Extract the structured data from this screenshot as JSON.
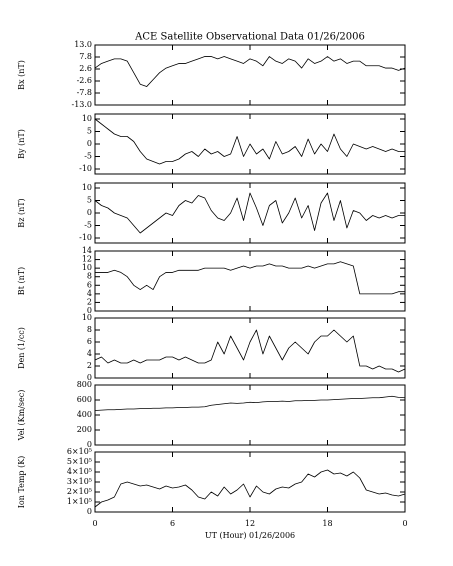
{
  "chart_data": [
    {
      "type": "line",
      "title": "ACE Satellite Observational Data  01/26/2006",
      "ylabel": "Bx (nT)",
      "color": "#000000",
      "xlim": [
        0,
        24
      ],
      "xticks": [
        0,
        6,
        12,
        18,
        24
      ],
      "ylim": [
        -13,
        13
      ],
      "yticks": [
        {
          "value": 13,
          "label": "13.0"
        },
        {
          "value": 7.8,
          "label": "7.8"
        },
        {
          "value": 2.6,
          "label": "2.6"
        },
        {
          "value": -2.6,
          "label": "-2.6"
        },
        {
          "value": -7.8,
          "label": "-7.8"
        },
        {
          "value": -13,
          "label": "-13.0"
        }
      ],
      "x": [
        0,
        0.5,
        1,
        1.5,
        2,
        2.5,
        3,
        3.5,
        4,
        4.5,
        5,
        5.5,
        6,
        6.5,
        7,
        7.5,
        8,
        8.5,
        9,
        9.5,
        10,
        10.5,
        11,
        11.5,
        12,
        12.5,
        13,
        13.5,
        14,
        14.5,
        15,
        15.5,
        16,
        16.5,
        17,
        17.5,
        18,
        18.5,
        19,
        19.5,
        20,
        20.5,
        21,
        21.5,
        22,
        22.5,
        23,
        23.5,
        24
      ],
      "values": [
        3,
        5,
        6,
        7,
        7,
        6,
        1,
        -4,
        -5,
        -2,
        1,
        3,
        4,
        5,
        5,
        6,
        7,
        8,
        8,
        7,
        8,
        7,
        6,
        5,
        7,
        6,
        4,
        8,
        6,
        5,
        7,
        6,
        3,
        7,
        5,
        6,
        8,
        6,
        7,
        5,
        6,
        6,
        4,
        4,
        4,
        3,
        3,
        2,
        3
      ]
    },
    {
      "type": "line",
      "ylabel": "By (nT)",
      "color": "#000000",
      "xlim": [
        0,
        24
      ],
      "xticks": [
        0,
        6,
        12,
        18,
        24
      ],
      "ylim": [
        -12,
        12
      ],
      "yticks": [
        10,
        5,
        0,
        -5,
        -10
      ],
      "x": [
        0,
        0.5,
        1,
        1.5,
        2,
        2.5,
        3,
        3.5,
        4,
        4.5,
        5,
        5.5,
        6,
        6.5,
        7,
        7.5,
        8,
        8.5,
        9,
        9.5,
        10,
        10.5,
        11,
        11.5,
        12,
        12.5,
        13,
        13.5,
        14,
        14.5,
        15,
        15.5,
        16,
        16.5,
        17,
        17.5,
        18,
        18.5,
        19,
        19.5,
        20,
        20.5,
        21,
        21.5,
        22,
        22.5,
        23,
        23.5,
        24
      ],
      "values": [
        10,
        8,
        6,
        4,
        3,
        3,
        1,
        -3,
        -6,
        -7,
        -8,
        -7,
        -7,
        -6,
        -4,
        -3,
        -5,
        -2,
        -4,
        -3,
        -5,
        -4,
        3,
        -5,
        0,
        -4,
        -2,
        -6,
        1,
        -4,
        -3,
        -1,
        -5,
        2,
        -4,
        0,
        -3,
        4,
        -2,
        -5,
        0,
        -1,
        -2,
        -1,
        -2,
        -3,
        -2,
        -3,
        -3
      ]
    },
    {
      "type": "line",
      "ylabel": "Bz (nT)",
      "color": "#000000",
      "xlim": [
        0,
        24
      ],
      "xticks": [
        0,
        6,
        12,
        18,
        24
      ],
      "ylim": [
        -12,
        12
      ],
      "yticks": [
        10,
        5,
        0,
        -5,
        -10
      ],
      "x": [
        0,
        0.5,
        1,
        1.5,
        2,
        2.5,
        3,
        3.5,
        4,
        4.5,
        5,
        5.5,
        6,
        6.5,
        7,
        7.5,
        8,
        8.5,
        9,
        9.5,
        10,
        10.5,
        11,
        11.5,
        12,
        12.5,
        13,
        13.5,
        14,
        14.5,
        15,
        15.5,
        16,
        16.5,
        17,
        17.5,
        18,
        18.5,
        19,
        19.5,
        20,
        20.5,
        21,
        21.5,
        22,
        22.5,
        23,
        23.5,
        24
      ],
      "values": [
        5,
        3,
        2,
        0,
        -1,
        -2,
        -5,
        -8,
        -6,
        -4,
        -2,
        0,
        -1,
        3,
        5,
        4,
        7,
        6,
        1,
        -2,
        -3,
        0,
        6,
        -3,
        8,
        2,
        -5,
        3,
        5,
        -4,
        0,
        6,
        -2,
        3,
        -7,
        4,
        8,
        -3,
        5,
        -6,
        1,
        0,
        -3,
        -1,
        -2,
        -1,
        -2,
        -1,
        -1
      ]
    },
    {
      "type": "line",
      "ylabel": "Bt (nT)",
      "color": "#000000",
      "xlim": [
        0,
        24
      ],
      "xticks": [
        0,
        6,
        12,
        18,
        24
      ],
      "ylim": [
        0,
        14
      ],
      "yticks": [
        14,
        12,
        10,
        8,
        6,
        4,
        2,
        0
      ],
      "x": [
        0,
        0.5,
        1,
        1.5,
        2,
        2.5,
        3,
        3.5,
        4,
        4.5,
        5,
        5.5,
        6,
        6.5,
        7,
        7.5,
        8,
        8.5,
        9,
        9.5,
        10,
        10.5,
        11,
        11.5,
        12,
        12.5,
        13,
        13.5,
        14,
        14.5,
        15,
        15.5,
        16,
        16.5,
        17,
        17.5,
        18,
        18.5,
        19,
        19.5,
        20,
        20.5,
        21,
        21.5,
        22,
        22.5,
        23,
        23.5,
        24
      ],
      "values": [
        9,
        9,
        9,
        9.5,
        9,
        8,
        6,
        5,
        6,
        5,
        8,
        9,
        9,
        9.5,
        9.5,
        9.5,
        9.5,
        10,
        10,
        10,
        10,
        9.5,
        10,
        10.5,
        10,
        10.5,
        10.5,
        11,
        10.5,
        10.5,
        10,
        10,
        10,
        10.5,
        10,
        10.5,
        11,
        11,
        11.5,
        11,
        10.5,
        4,
        4,
        4,
        4,
        4,
        4,
        4.5,
        4.5
      ]
    },
    {
      "type": "line",
      "ylabel": "Den (1/cc)",
      "color": "#000000",
      "xlim": [
        0,
        24
      ],
      "xticks": [
        0,
        6,
        12,
        18,
        24
      ],
      "ylim": [
        0,
        10
      ],
      "yticks": [
        10,
        8,
        6,
        4,
        2,
        0
      ],
      "x": [
        0,
        0.5,
        1,
        1.5,
        2,
        2.5,
        3,
        3.5,
        4,
        4.5,
        5,
        5.5,
        6,
        6.5,
        7,
        7.5,
        8,
        8.5,
        9,
        9.5,
        10,
        10.5,
        11,
        11.5,
        12,
        12.5,
        13,
        13.5,
        14,
        14.5,
        15,
        15.5,
        16,
        16.5,
        17,
        17.5,
        18,
        18.5,
        19,
        19.5,
        20,
        20.5,
        21,
        21.5,
        22,
        22.5,
        23,
        23.5,
        24
      ],
      "values": [
        3,
        3.5,
        2.5,
        3,
        2.5,
        2.5,
        3,
        2.5,
        3,
        3,
        3,
        3.5,
        3.5,
        3,
        3.5,
        3,
        2.5,
        2.5,
        3,
        6,
        4,
        7,
        5,
        3,
        6,
        8,
        4,
        7,
        5,
        3,
        5,
        6,
        5,
        4,
        6,
        7,
        7,
        8,
        7,
        6,
        7,
        2,
        2,
        1.5,
        2,
        1.5,
        1.5,
        1,
        1.5
      ]
    },
    {
      "type": "line",
      "ylabel": "Vel (Km/sec)",
      "color": "#000000",
      "xlim": [
        0,
        24
      ],
      "xticks": [
        0,
        6,
        12,
        18,
        24
      ],
      "ylim": [
        0,
        800
      ],
      "yticks": [
        800,
        600,
        400,
        200,
        0
      ],
      "x": [
        0,
        0.5,
        1,
        1.5,
        2,
        2.5,
        3,
        3.5,
        4,
        4.5,
        5,
        5.5,
        6,
        6.5,
        7,
        7.5,
        8,
        8.5,
        9,
        9.5,
        10,
        10.5,
        11,
        11.5,
        12,
        12.5,
        13,
        13.5,
        14,
        14.5,
        15,
        15.5,
        16,
        16.5,
        17,
        17.5,
        18,
        18.5,
        19,
        19.5,
        20,
        20.5,
        21,
        21.5,
        22,
        22.5,
        23,
        23.5,
        24
      ],
      "values": [
        460,
        465,
        470,
        470,
        475,
        480,
        480,
        485,
        485,
        490,
        490,
        495,
        495,
        500,
        500,
        505,
        505,
        510,
        530,
        540,
        550,
        560,
        555,
        560,
        570,
        565,
        575,
        580,
        580,
        585,
        580,
        590,
        590,
        595,
        595,
        600,
        600,
        605,
        610,
        615,
        620,
        620,
        625,
        630,
        630,
        640,
        650,
        635,
        630
      ]
    },
    {
      "type": "line",
      "ylabel": "Ion Temp (K)",
      "xlabel": "UT (Hour)  01/26/2006",
      "color": "#000000",
      "xlim": [
        0,
        24
      ],
      "xticks": [
        0,
        6,
        12,
        18,
        {
          "value": 24,
          "label": "0"
        }
      ],
      "ylim": [
        0,
        600000
      ],
      "yticks": [
        {
          "value": 600000,
          "label": "6×10⁵"
        },
        {
          "value": 500000,
          "label": "5×10⁵"
        },
        {
          "value": 400000,
          "label": "4×10⁵"
        },
        {
          "value": 300000,
          "label": "3×10⁵"
        },
        {
          "value": 200000,
          "label": "2×10⁵"
        },
        {
          "value": 100000,
          "label": "1×10⁵"
        },
        0
      ],
      "x": [
        0,
        0.5,
        1,
        1.5,
        2,
        2.5,
        3,
        3.5,
        4,
        4.5,
        5,
        5.5,
        6,
        6.5,
        7,
        7.5,
        8,
        8.5,
        9,
        9.5,
        10,
        10.5,
        11,
        11.5,
        12,
        12.5,
        13,
        13.5,
        14,
        14.5,
        15,
        15.5,
        16,
        16.5,
        17,
        17.5,
        18,
        18.5,
        19,
        19.5,
        20,
        20.5,
        21,
        21.5,
        22,
        22.5,
        23,
        23.5,
        24
      ],
      "values": [
        50000,
        100000,
        120000,
        150000,
        280000,
        300000,
        280000,
        260000,
        270000,
        250000,
        230000,
        260000,
        240000,
        250000,
        270000,
        220000,
        150000,
        130000,
        200000,
        160000,
        250000,
        180000,
        220000,
        280000,
        150000,
        260000,
        200000,
        180000,
        230000,
        250000,
        240000,
        280000,
        300000,
        380000,
        350000,
        400000,
        420000,
        380000,
        390000,
        360000,
        400000,
        340000,
        220000,
        200000,
        180000,
        190000,
        170000,
        160000,
        180000
      ]
    }
  ]
}
